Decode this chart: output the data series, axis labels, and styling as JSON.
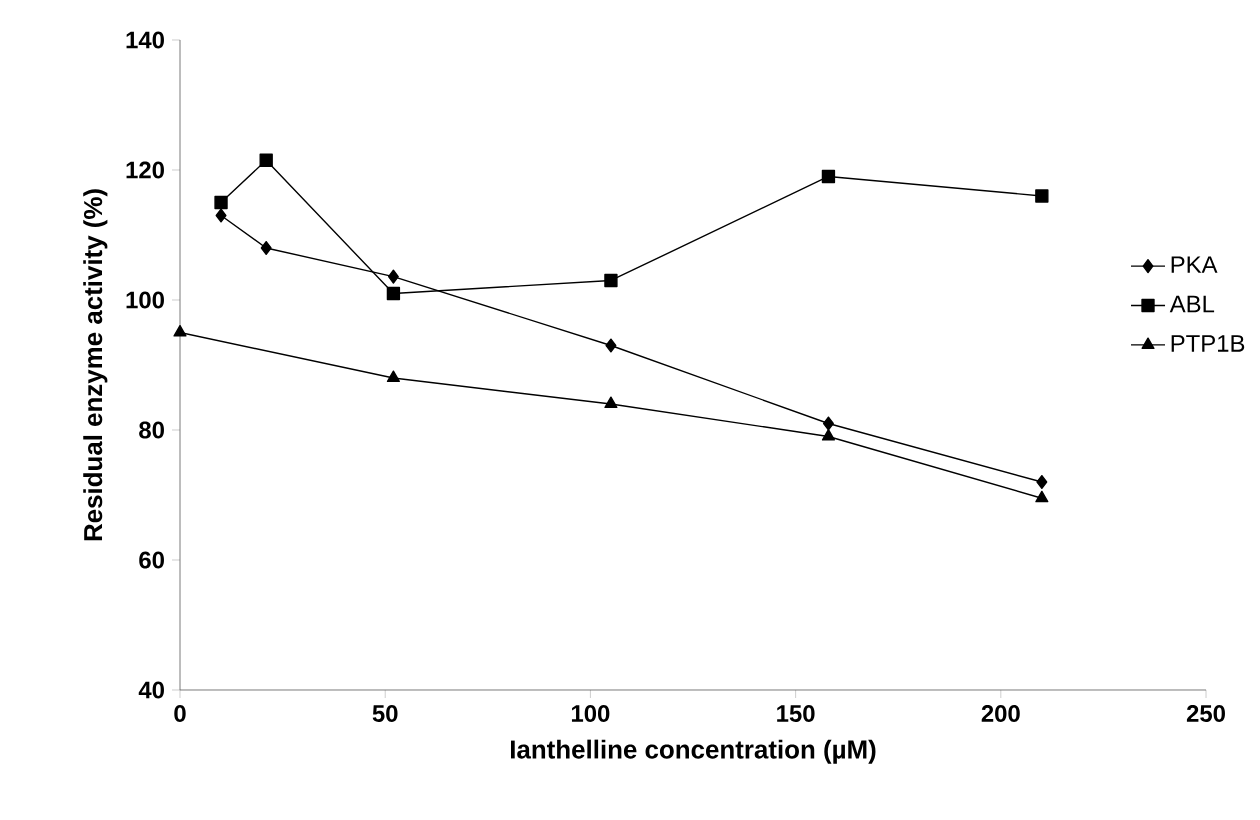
{
  "chart_data": {
    "type": "line",
    "xlabel": "Ianthelline concentration (µM)",
    "ylabel": "Residual enzyme activity (%)",
    "xlim": [
      0,
      250
    ],
    "xticks": [
      0,
      50,
      100,
      150,
      200,
      250
    ],
    "ylim": [
      40,
      140
    ],
    "yticks": [
      40,
      60,
      80,
      100,
      120,
      140
    ],
    "legend": "right",
    "grid": false,
    "series": [
      {
        "name": "PKA",
        "color": "#000000",
        "marker": "diamond",
        "x": [
          10,
          21,
          52,
          105,
          158,
          210
        ],
        "values": [
          113,
          108,
          103.6,
          93,
          81,
          72
        ]
      },
      {
        "name": "ABL",
        "color": "#000000",
        "marker": "square",
        "x": [
          10,
          21,
          52,
          105,
          158,
          210
        ],
        "values": [
          115,
          121.5,
          101,
          103,
          119,
          116
        ]
      },
      {
        "name": "PTP1B",
        "color": "#000000",
        "marker": "triangle",
        "x": [
          0,
          52,
          105,
          158,
          210
        ],
        "values": [
          95,
          88,
          84,
          79,
          69.5
        ]
      }
    ]
  }
}
